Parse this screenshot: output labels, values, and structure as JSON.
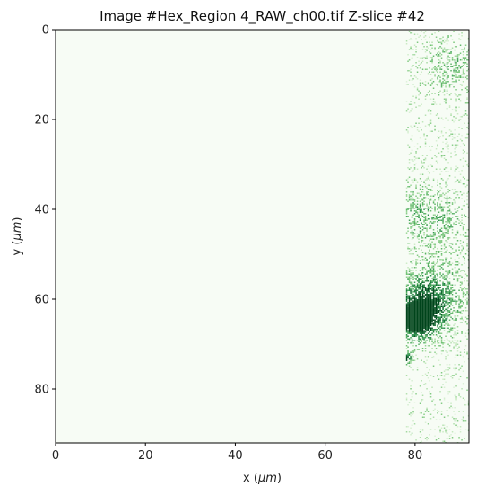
{
  "chart_data": {
    "type": "heatmap",
    "title": "Image #Hex_Region 4_RAW_ch00.tif Z-slice #42",
    "xlabel_prefix": "x (",
    "xlabel_unit": "μm",
    "xlabel_suffix": ")",
    "ylabel_prefix": "y (",
    "ylabel_unit": "μm",
    "ylabel_suffix": ")",
    "xlim": [
      0,
      92
    ],
    "ylim": [
      92,
      0
    ],
    "y_inverted": true,
    "x_ticks": [
      {
        "value": 0,
        "label": "0"
      },
      {
        "value": 20,
        "label": "20"
      },
      {
        "value": 40,
        "label": "40"
      },
      {
        "value": 60,
        "label": "60"
      },
      {
        "value": 80,
        "label": "80"
      }
    ],
    "y_ticks": [
      {
        "value": 0,
        "label": "0"
      },
      {
        "value": 20,
        "label": "20"
      },
      {
        "value": 40,
        "label": "40"
      },
      {
        "value": 60,
        "label": "60"
      },
      {
        "value": 80,
        "label": "80"
      }
    ],
    "colormap": "Greens",
    "background_color": "#f7fcf5",
    "noise_region_x": [
      78,
      92
    ],
    "hotspots": [
      {
        "x": 80.0,
        "y": 64.5,
        "intensity": 0.95,
        "radius": 2.6
      },
      {
        "x": 82.0,
        "y": 62.0,
        "intensity": 0.55,
        "radius": 4.0
      },
      {
        "x": 84.0,
        "y": 58.0,
        "intensity": 0.35,
        "radius": 5.0
      },
      {
        "x": 85.0,
        "y": 42.0,
        "intensity": 0.3,
        "radius": 4.5
      },
      {
        "x": 88.0,
        "y": 8.0,
        "intensity": 0.25,
        "radius": 4.0
      },
      {
        "x": 78.0,
        "y": 72.8,
        "intensity": 0.9,
        "radius": 0.8
      },
      {
        "x": 79.0,
        "y": 40.0,
        "intensity": 0.2,
        "radius": 3.0
      }
    ],
    "grid": false
  }
}
